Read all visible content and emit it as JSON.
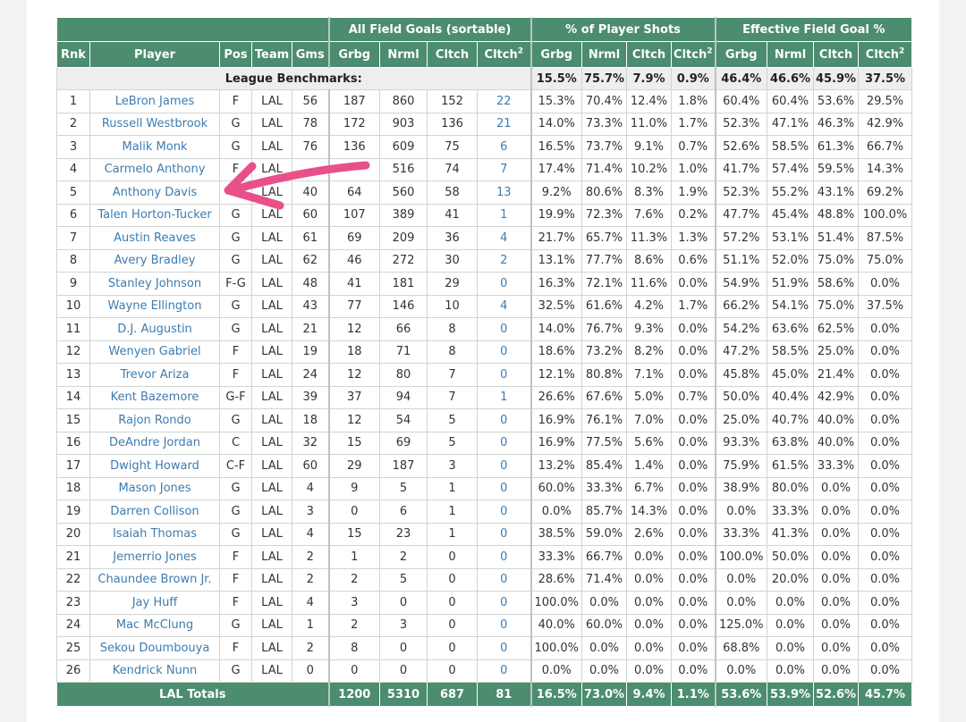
{
  "groups": [
    {
      "label": "",
      "span": 5
    },
    {
      "label": "All Field Goals (sortable)",
      "span": 4
    },
    {
      "label": "% of Player Shots",
      "span": 4
    },
    {
      "label": "Effective Field Goal %",
      "span": 4
    }
  ],
  "columns": [
    "Rnk",
    "Player",
    "Pos",
    "Team",
    "Gms",
    "Grbg",
    "Nrml",
    "Cltch",
    "Cltch",
    "Grbg",
    "Nrml",
    "Cltch",
    "Cltch",
    "Grbg",
    "Nrml",
    "Cltch",
    "Cltch"
  ],
  "squared_sup": "2",
  "benchmarks": {
    "label": "League Benchmarks:",
    "values": [
      "15.5%",
      "75.7%",
      "7.9%",
      "0.9%",
      "46.4%",
      "46.6%",
      "45.9%",
      "37.5%"
    ]
  },
  "rows": [
    [
      "1",
      "LeBron James",
      "F",
      "LAL",
      "56",
      "187",
      "860",
      "152",
      "22",
      "15.3%",
      "70.4%",
      "12.4%",
      "1.8%",
      "60.4%",
      "60.4%",
      "53.6%",
      "29.5%"
    ],
    [
      "2",
      "Russell Westbrook",
      "G",
      "LAL",
      "78",
      "172",
      "903",
      "136",
      "21",
      "14.0%",
      "73.3%",
      "11.0%",
      "1.7%",
      "52.3%",
      "47.1%",
      "46.3%",
      "42.9%"
    ],
    [
      "3",
      "Malik Monk",
      "G",
      "LAL",
      "76",
      "136",
      "609",
      "75",
      "6",
      "16.5%",
      "73.7%",
      "9.1%",
      "0.7%",
      "52.6%",
      "58.5%",
      "61.3%",
      "66.7%"
    ],
    [
      "4",
      "Carmelo Anthony",
      "F",
      "LAL",
      "",
      "",
      "516",
      "74",
      "7",
      "17.4%",
      "71.4%",
      "10.2%",
      "1.0%",
      "41.7%",
      "57.4%",
      "59.5%",
      "14.3%"
    ],
    [
      "5",
      "Anthony Davis",
      "",
      "LAL",
      "40",
      "64",
      "560",
      "58",
      "13",
      "9.2%",
      "80.6%",
      "8.3%",
      "1.9%",
      "52.3%",
      "55.2%",
      "43.1%",
      "69.2%"
    ],
    [
      "6",
      "Talen Horton-Tucker",
      "G",
      "LAL",
      "60",
      "107",
      "389",
      "41",
      "1",
      "19.9%",
      "72.3%",
      "7.6%",
      "0.2%",
      "47.7%",
      "45.4%",
      "48.8%",
      "100.0%"
    ],
    [
      "7",
      "Austin Reaves",
      "G",
      "LAL",
      "61",
      "69",
      "209",
      "36",
      "4",
      "21.7%",
      "65.7%",
      "11.3%",
      "1.3%",
      "57.2%",
      "53.1%",
      "51.4%",
      "87.5%"
    ],
    [
      "8",
      "Avery Bradley",
      "G",
      "LAL",
      "62",
      "46",
      "272",
      "30",
      "2",
      "13.1%",
      "77.7%",
      "8.6%",
      "0.6%",
      "51.1%",
      "52.0%",
      "75.0%",
      "75.0%"
    ],
    [
      "9",
      "Stanley Johnson",
      "F-G",
      "LAL",
      "48",
      "41",
      "181",
      "29",
      "0",
      "16.3%",
      "72.1%",
      "11.6%",
      "0.0%",
      "54.9%",
      "51.9%",
      "58.6%",
      "0.0%"
    ],
    [
      "10",
      "Wayne Ellington",
      "G",
      "LAL",
      "43",
      "77",
      "146",
      "10",
      "4",
      "32.5%",
      "61.6%",
      "4.2%",
      "1.7%",
      "66.2%",
      "54.1%",
      "75.0%",
      "37.5%"
    ],
    [
      "11",
      "D.J. Augustin",
      "G",
      "LAL",
      "21",
      "12",
      "66",
      "8",
      "0",
      "14.0%",
      "76.7%",
      "9.3%",
      "0.0%",
      "54.2%",
      "63.6%",
      "62.5%",
      "0.0%"
    ],
    [
      "12",
      "Wenyen Gabriel",
      "F",
      "LAL",
      "19",
      "18",
      "71",
      "8",
      "0",
      "18.6%",
      "73.2%",
      "8.2%",
      "0.0%",
      "47.2%",
      "58.5%",
      "25.0%",
      "0.0%"
    ],
    [
      "13",
      "Trevor Ariza",
      "F",
      "LAL",
      "24",
      "12",
      "80",
      "7",
      "0",
      "12.1%",
      "80.8%",
      "7.1%",
      "0.0%",
      "45.8%",
      "45.0%",
      "21.4%",
      "0.0%"
    ],
    [
      "14",
      "Kent Bazemore",
      "G-F",
      "LAL",
      "39",
      "37",
      "94",
      "7",
      "1",
      "26.6%",
      "67.6%",
      "5.0%",
      "0.7%",
      "50.0%",
      "40.4%",
      "42.9%",
      "0.0%"
    ],
    [
      "15",
      "Rajon Rondo",
      "G",
      "LAL",
      "18",
      "12",
      "54",
      "5",
      "0",
      "16.9%",
      "76.1%",
      "7.0%",
      "0.0%",
      "25.0%",
      "40.7%",
      "40.0%",
      "0.0%"
    ],
    [
      "16",
      "DeAndre Jordan",
      "C",
      "LAL",
      "32",
      "15",
      "69",
      "5",
      "0",
      "16.9%",
      "77.5%",
      "5.6%",
      "0.0%",
      "93.3%",
      "63.8%",
      "40.0%",
      "0.0%"
    ],
    [
      "17",
      "Dwight Howard",
      "C-F",
      "LAL",
      "60",
      "29",
      "187",
      "3",
      "0",
      "13.2%",
      "85.4%",
      "1.4%",
      "0.0%",
      "75.9%",
      "61.5%",
      "33.3%",
      "0.0%"
    ],
    [
      "18",
      "Mason Jones",
      "G",
      "LAL",
      "4",
      "9",
      "5",
      "1",
      "0",
      "60.0%",
      "33.3%",
      "6.7%",
      "0.0%",
      "38.9%",
      "80.0%",
      "0.0%",
      "0.0%"
    ],
    [
      "19",
      "Darren Collison",
      "G",
      "LAL",
      "3",
      "0",
      "6",
      "1",
      "0",
      "0.0%",
      "85.7%",
      "14.3%",
      "0.0%",
      "0.0%",
      "33.3%",
      "0.0%",
      "0.0%"
    ],
    [
      "20",
      "Isaiah Thomas",
      "G",
      "LAL",
      "4",
      "15",
      "23",
      "1",
      "0",
      "38.5%",
      "59.0%",
      "2.6%",
      "0.0%",
      "33.3%",
      "41.3%",
      "0.0%",
      "0.0%"
    ],
    [
      "21",
      "Jemerrio Jones",
      "F",
      "LAL",
      "2",
      "1",
      "2",
      "0",
      "0",
      "33.3%",
      "66.7%",
      "0.0%",
      "0.0%",
      "100.0%",
      "50.0%",
      "0.0%",
      "0.0%"
    ],
    [
      "22",
      "Chaundee Brown Jr.",
      "F",
      "LAL",
      "2",
      "2",
      "5",
      "0",
      "0",
      "28.6%",
      "71.4%",
      "0.0%",
      "0.0%",
      "0.0%",
      "20.0%",
      "0.0%",
      "0.0%"
    ],
    [
      "23",
      "Jay Huff",
      "F",
      "LAL",
      "4",
      "3",
      "0",
      "0",
      "0",
      "100.0%",
      "0.0%",
      "0.0%",
      "0.0%",
      "0.0%",
      "0.0%",
      "0.0%",
      "0.0%"
    ],
    [
      "24",
      "Mac McClung",
      "G",
      "LAL",
      "1",
      "2",
      "3",
      "0",
      "0",
      "40.0%",
      "60.0%",
      "0.0%",
      "0.0%",
      "125.0%",
      "0.0%",
      "0.0%",
      "0.0%"
    ],
    [
      "25",
      "Sekou Doumbouya",
      "F",
      "LAL",
      "2",
      "8",
      "0",
      "0",
      "0",
      "100.0%",
      "0.0%",
      "0.0%",
      "0.0%",
      "68.8%",
      "0.0%",
      "0.0%",
      "0.0%"
    ],
    [
      "26",
      "Kendrick Nunn",
      "G",
      "LAL",
      "0",
      "0",
      "0",
      "0",
      "0",
      "0.0%",
      "0.0%",
      "0.0%",
      "0.0%",
      "0.0%",
      "0.0%",
      "0.0%",
      "0.0%"
    ]
  ],
  "totals": {
    "label": "LAL Totals",
    "values": [
      "1200",
      "5310",
      "687",
      "81",
      "16.5%",
      "73.0%",
      "9.4%",
      "1.1%",
      "53.6%",
      "53.9%",
      "52.6%",
      "45.7%"
    ]
  },
  "annotation": {
    "color": "#e8508a",
    "icon": "hand-drawn-arrow-icon"
  }
}
